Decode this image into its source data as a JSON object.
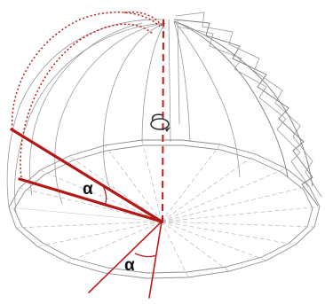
{
  "diagram": {
    "angle_label_upper": "α",
    "angle_label_lower": "α",
    "colors": {
      "wireframe": "#9a9a9a",
      "highlight": "#c21a1a",
      "label": "#111111"
    }
  }
}
